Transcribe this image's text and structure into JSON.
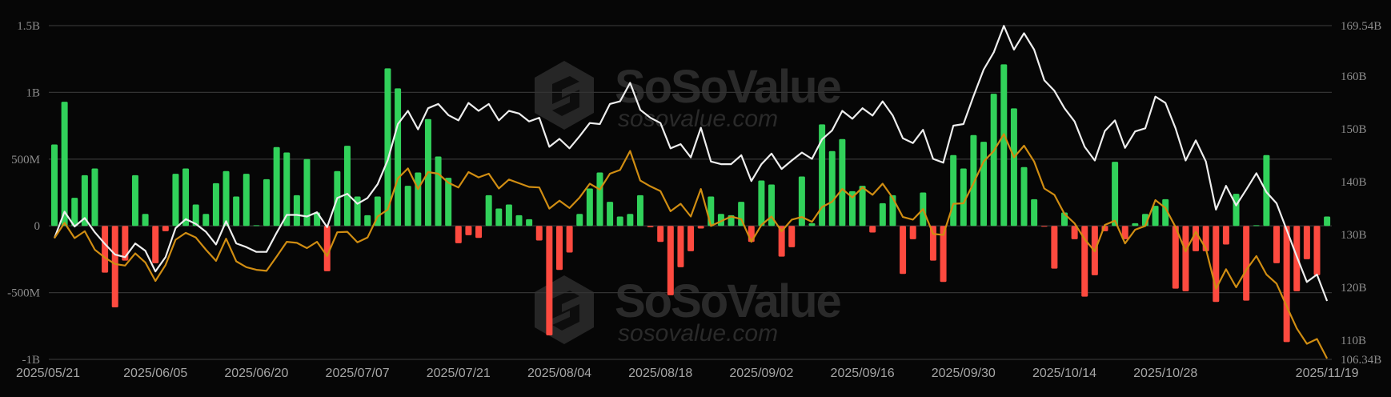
{
  "watermark": {
    "title": "SoSoValue",
    "url": "sosovalue.com"
  },
  "colors": {
    "background": "#060606",
    "inflow_bar": "#31d15a",
    "outflow_bar": "#fd4a3f",
    "line_white": "#eeeeee",
    "line_orange": "#d08d12",
    "grid": "#333333"
  },
  "chart_data": {
    "type": "bar+line",
    "left_axis": {
      "ticks": [
        "1.5B",
        "1B",
        "500M",
        "0",
        "-500M",
        "-1B"
      ],
      "tick_values": [
        1.5,
        1,
        0.5,
        0,
        -0.5,
        -1
      ],
      "range": [
        -1,
        1.5
      ],
      "unit": "B"
    },
    "right_axis": {
      "ticks": [
        "169.54B",
        "160B",
        "150B",
        "140B",
        "130B",
        "120B",
        "110B",
        "106.34B"
      ],
      "tick_values": [
        169.54,
        160,
        150,
        140,
        130,
        120,
        110,
        106.34
      ],
      "range": [
        106.34,
        169.54
      ],
      "unit": "B"
    },
    "x_tick_labels": [
      "2025/05/21",
      "2025/06/05",
      "2025/06/20",
      "2025/07/07",
      "2025/07/21",
      "2025/08/04",
      "2025/08/18",
      "2025/09/02",
      "2025/09/16",
      "2025/09/30",
      "2025/10/14",
      "2025/10/28",
      "2025/11/19"
    ],
    "grid": true,
    "legend": "none",
    "categories": [
      "2025/05/21",
      "2025/05/22",
      "2025/05/23",
      "2025/05/27",
      "2025/05/28",
      "2025/05/29",
      "2025/05/30",
      "2025/06/02",
      "2025/06/03",
      "2025/06/04",
      "2025/06/05",
      "2025/06/06",
      "2025/06/09",
      "2025/06/10",
      "2025/06/11",
      "2025/06/12",
      "2025/06/13",
      "2025/06/16",
      "2025/06/17",
      "2025/06/18",
      "2025/06/20",
      "2025/06/23",
      "2025/06/24",
      "2025/06/25",
      "2025/06/26",
      "2025/06/27",
      "2025/06/30",
      "2025/07/01",
      "2025/07/02",
      "2025/07/03",
      "2025/07/07",
      "2025/07/08",
      "2025/07/09",
      "2025/07/10",
      "2025/07/11",
      "2025/07/14",
      "2025/07/15",
      "2025/07/16",
      "2025/07/17",
      "2025/07/18",
      "2025/07/21",
      "2025/07/22",
      "2025/07/23",
      "2025/07/24",
      "2025/07/25",
      "2025/07/28",
      "2025/07/29",
      "2025/07/30",
      "2025/07/31",
      "2025/08/01",
      "2025/08/04",
      "2025/08/05",
      "2025/08/06",
      "2025/08/07",
      "2025/08/08",
      "2025/08/11",
      "2025/08/12",
      "2025/08/13",
      "2025/08/14",
      "2025/08/15",
      "2025/08/18",
      "2025/08/19",
      "2025/08/20",
      "2025/08/21",
      "2025/08/22",
      "2025/08/25",
      "2025/08/26",
      "2025/08/27",
      "2025/08/28",
      "2025/08/29",
      "2025/09/02",
      "2025/09/03",
      "2025/09/04",
      "2025/09/05",
      "2025/09/08",
      "2025/09/09",
      "2025/09/10",
      "2025/09/11",
      "2025/09/12",
      "2025/09/15",
      "2025/09/16",
      "2025/09/17",
      "2025/09/18",
      "2025/09/19",
      "2025/09/22",
      "2025/09/23",
      "2025/09/24",
      "2025/09/25",
      "2025/09/26",
      "2025/09/29",
      "2025/09/30",
      "2025/10/01",
      "2025/10/02",
      "2025/10/03",
      "2025/10/06",
      "2025/10/07",
      "2025/10/08",
      "2025/10/09",
      "2025/10/10",
      "2025/10/13",
      "2025/10/14",
      "2025/10/15",
      "2025/10/16",
      "2025/10/17",
      "2025/10/20",
      "2025/10/21",
      "2025/10/22",
      "2025/10/23",
      "2025/10/24",
      "2025/10/27",
      "2025/10/28",
      "2025/10/29",
      "2025/10/30",
      "2025/10/31",
      "2025/11/03",
      "2025/11/04",
      "2025/11/05",
      "2025/11/06",
      "2025/11/07",
      "2025/11/10",
      "2025/11/11",
      "2025/11/12",
      "2025/11/13",
      "2025/11/14",
      "2025/11/17",
      "2025/11/18",
      "2025/11/19"
    ],
    "series": [
      {
        "type": "bar",
        "axis": "left",
        "values": [
          0.61,
          0.93,
          0.21,
          0.38,
          0.43,
          -0.35,
          -0.61,
          -0.26,
          0.38,
          0.09,
          -0.28,
          -0.04,
          0.39,
          0.43,
          0.16,
          0.09,
          0.32,
          0.41,
          0.22,
          0.39,
          0.005,
          0.35,
          0.59,
          0.55,
          0.23,
          0.5,
          0.1,
          -0.34,
          0.41,
          0.6,
          0.22,
          0.08,
          0.22,
          1.18,
          1.03,
          0.3,
          0.4,
          0.8,
          0.52,
          0.36,
          -0.13,
          -0.07,
          -0.09,
          0.23,
          0.13,
          0.16,
          0.08,
          0.05,
          -0.11,
          -0.82,
          -0.33,
          -0.2,
          0.09,
          0.28,
          0.4,
          0.18,
          0.07,
          0.09,
          0.23,
          -0.01,
          -0.12,
          -0.52,
          -0.31,
          -0.19,
          -0.02,
          0.22,
          0.09,
          0.08,
          0.18,
          -0.12,
          0.34,
          0.31,
          -0.23,
          -0.16,
          0.37,
          0.02,
          0.76,
          0.56,
          0.65,
          0.26,
          0.3,
          -0.05,
          0.17,
          0.23,
          -0.36,
          -0.1,
          0.25,
          -0.26,
          -0.42,
          0.53,
          0.43,
          0.68,
          0.63,
          0.99,
          1.21,
          0.88,
          0.44,
          0.2,
          -0.005,
          -0.32,
          0.1,
          -0.1,
          -0.53,
          -0.37,
          -0.04,
          0.48,
          -0.1,
          0.02,
          0.09,
          0.15,
          0.2,
          -0.47,
          -0.49,
          -0.19,
          -0.19,
          -0.57,
          -0.14,
          0.24,
          -0.56,
          0.005,
          0.53,
          -0.28,
          -0.87,
          -0.49,
          -0.25,
          -0.37,
          0.07
        ]
      },
      {
        "type": "line",
        "axis": "right",
        "color": "#eeeeee",
        "values": [
          129.3,
          134.3,
          131.5,
          133.1,
          130.4,
          128.2,
          126.2,
          125.7,
          128.3,
          126.9,
          123.0,
          125.7,
          131.2,
          132.9,
          132.0,
          130.5,
          128.1,
          132.5,
          128.3,
          127.6,
          126.7,
          126.7,
          130.3,
          133.7,
          133.7,
          133.4,
          134.2,
          131.4,
          136.9,
          137.7,
          135.8,
          136.9,
          139.5,
          144.1,
          150.9,
          153.4,
          149.9,
          153.9,
          154.7,
          152.6,
          151.6,
          154.9,
          153.4,
          154.7,
          151.6,
          153.4,
          152.9,
          151.4,
          152.1,
          146.6,
          148.1,
          146.3,
          148.6,
          151.1,
          150.9,
          154.7,
          155.2,
          158.7,
          153.6,
          152.1,
          151.1,
          146.3,
          147.1,
          144.6,
          150.2,
          143.8,
          143.3,
          143.3,
          145.0,
          140.1,
          143.3,
          145.3,
          142.4,
          144.0,
          145.5,
          144.3,
          148.0,
          149.7,
          153.4,
          151.9,
          153.9,
          152.5,
          155.2,
          152.5,
          148.2,
          147.3,
          149.8,
          144.3,
          143.6,
          150.6,
          150.9,
          156.2,
          161.2,
          164.5,
          169.5,
          165.0,
          168.1,
          165.0,
          159.2,
          157.2,
          153.9,
          151.4,
          146.6,
          144.0,
          149.6,
          151.6,
          146.4,
          149.5,
          150.1,
          156.1,
          154.9,
          150.1,
          144.0,
          147.8,
          143.8,
          134.7,
          139.2,
          135.5,
          138.5,
          141.6,
          138.0,
          135.9,
          130.9,
          125.8,
          121.0,
          122.4,
          117.4
        ]
      },
      {
        "type": "line",
        "axis": "right",
        "color": "#d08d12",
        "values": [
          129.3,
          132.2,
          129.3,
          130.6,
          127.1,
          125.6,
          124.4,
          124.1,
          126.4,
          124.7,
          121.2,
          124.2,
          129.0,
          130.3,
          129.4,
          127.1,
          125.0,
          129.2,
          124.9,
          123.8,
          123.3,
          123.1,
          125.8,
          128.6,
          128.4,
          127.4,
          128.6,
          125.9,
          130.4,
          130.5,
          128.5,
          129.4,
          133.4,
          134.7,
          140.6,
          142.5,
          138.6,
          141.8,
          141.5,
          139.8,
          138.9,
          141.8,
          140.8,
          141.5,
          138.7,
          140.4,
          139.7,
          139.0,
          138.9,
          134.9,
          136.4,
          135.0,
          137.0,
          139.6,
          138.5,
          141.5,
          142.2,
          145.8,
          140.2,
          139.1,
          138.2,
          134.4,
          135.8,
          133.4,
          138.6,
          131.6,
          132.5,
          133.4,
          132.9,
          128.6,
          131.8,
          133.4,
          130.6,
          132.8,
          133.3,
          132.4,
          135.2,
          136.2,
          138.6,
          137.0,
          138.9,
          137.5,
          139.6,
          136.9,
          133.3,
          132.8,
          134.8,
          130.1,
          129.9,
          135.8,
          135.9,
          139.7,
          143.8,
          145.8,
          149.0,
          144.6,
          146.8,
          143.8,
          138.7,
          137.5,
          133.9,
          132.1,
          129.1,
          126.8,
          131.8,
          132.6,
          128.3,
          130.9,
          131.6,
          136.5,
          135.0,
          131.4,
          126.8,
          130.5,
          127.3,
          119.7,
          123.4,
          120.0,
          123.3,
          125.9,
          122.4,
          120.7,
          116.4,
          112.2,
          109.3,
          110.2,
          106.5
        ]
      }
    ]
  }
}
